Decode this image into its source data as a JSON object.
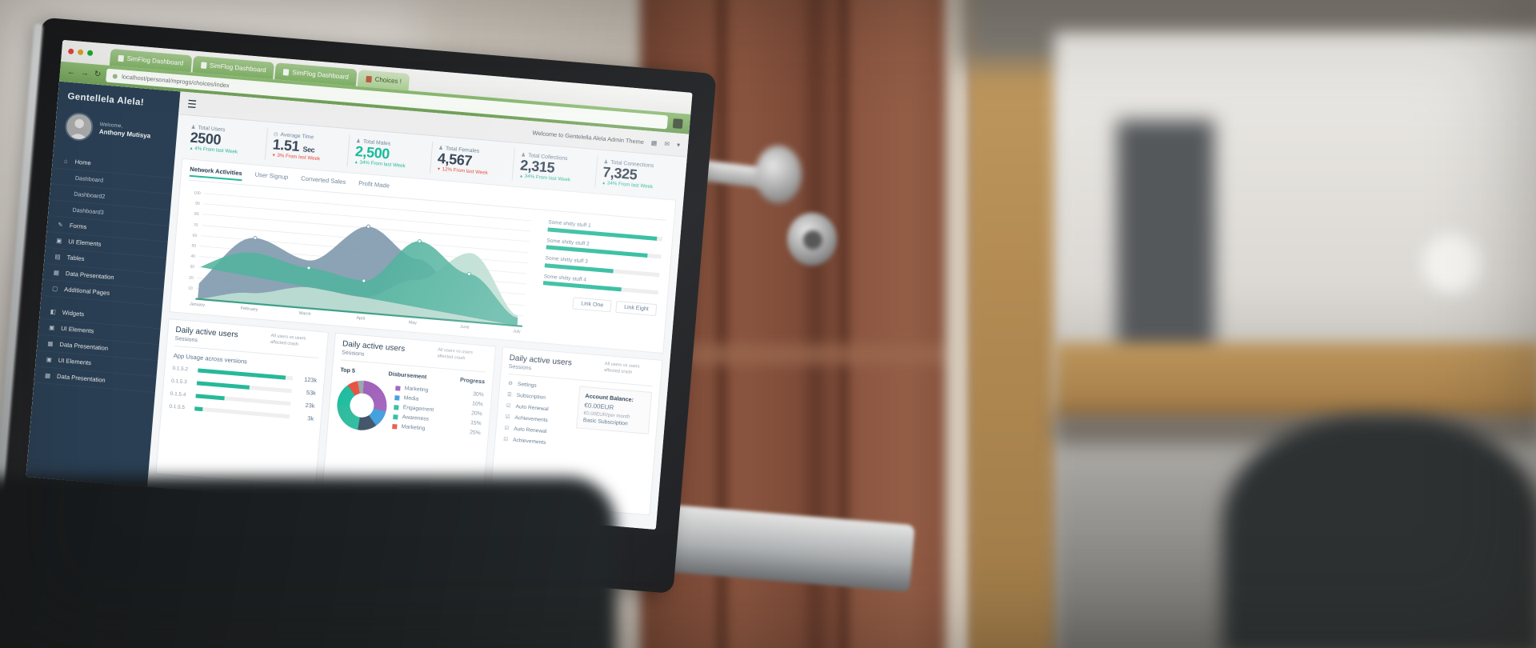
{
  "browser": {
    "tabs": [
      {
        "label": "SimFlog Dashboard"
      },
      {
        "label": "SimFlog Dashboard"
      },
      {
        "label": "SimFlog Dashboard"
      },
      {
        "label": "Choices !"
      }
    ],
    "url": "localhost/personal/mprogs/choices/index"
  },
  "sidebar": {
    "logo": "Gentellela Alela!",
    "welcome_label": "Welcome,",
    "user_name": "Anthony Mutisya",
    "items": [
      {
        "label": "Home"
      },
      {
        "label": "Dashboard"
      },
      {
        "label": "Dashboard2"
      },
      {
        "label": "Dashboard3"
      },
      {
        "label": "Forms"
      },
      {
        "label": "UI Elements"
      },
      {
        "label": "Tables"
      },
      {
        "label": "Data Presentation"
      },
      {
        "label": "Additional Pages"
      },
      {
        "label": "Widgets"
      },
      {
        "label": "UI Elements"
      },
      {
        "label": "Data Presentation"
      },
      {
        "label": "UI Elements"
      },
      {
        "label": "Data Presentation"
      }
    ]
  },
  "navbar": {
    "welcome_text": "Welcome to Gentelella Alela Admin Theme"
  },
  "stats": [
    {
      "label": "Total Users",
      "value": "2500",
      "unit": "",
      "delta": "4% From last Week",
      "trend": "up"
    },
    {
      "label": "Average Time",
      "value": "1.51",
      "unit": "Sec",
      "delta": "3% From last Week",
      "trend": "down"
    },
    {
      "label": "Total Males",
      "value": "2,500",
      "unit": "",
      "delta": "34% From last Week",
      "trend": "up"
    },
    {
      "label": "Total Females",
      "value": "4,567",
      "unit": "",
      "delta": "12% From last Week",
      "trend": "down"
    },
    {
      "label": "Total Collections",
      "value": "2,315",
      "unit": "",
      "delta": "34% From last Week",
      "trend": "up"
    },
    {
      "label": "Total Connections",
      "value": "7,325",
      "unit": "",
      "delta": "34% From last Week",
      "trend": "up"
    }
  ],
  "chart_panel": {
    "tabs": [
      "Network Activities",
      "User Signup",
      "Converted Sales",
      "Profit Made"
    ],
    "yticks": [
      "100",
      "90",
      "80",
      "70",
      "60",
      "50",
      "40",
      "30",
      "20",
      "10"
    ],
    "months": [
      "January",
      "February",
      "March",
      "April",
      "May",
      "June",
      "July"
    ]
  },
  "goals": {
    "items": [
      {
        "label": "Some shitty stuff 1",
        "percent": 95
      },
      {
        "label": "Some shitty stuff 2",
        "percent": 88
      },
      {
        "label": "Some shitty stuff 3",
        "percent": 60
      },
      {
        "label": "Some shitty stuff 4",
        "percent": 68
      }
    ],
    "buttons": [
      "Link One",
      "Link Eight"
    ]
  },
  "bottom": {
    "panel_title": "Daily active users",
    "panel_note": "All users vs users affected crash",
    "sessions_label": "Sessions",
    "app_usage": {
      "title": "App Usage across versions",
      "rows": [
        {
          "version": "0.1.5.2",
          "value": "123k",
          "percent": 92
        },
        {
          "version": "0.1.5.3",
          "value": "53k",
          "percent": 55
        },
        {
          "version": "0.1.5.4",
          "value": "23k",
          "percent": 30
        },
        {
          "version": "0.1.5.5",
          "value": "3k",
          "percent": 8
        }
      ]
    },
    "top5": {
      "headers": [
        "Top 5",
        "Disbursement",
        "Progress"
      ],
      "rows": [
        {
          "label": "Marketing",
          "value": "30%",
          "color": "#9b59b6"
        },
        {
          "label": "Media",
          "value": "10%",
          "color": "#3498db"
        },
        {
          "label": "Engagement",
          "value": "20%",
          "color": "#26b99a"
        },
        {
          "label": "Awareness",
          "value": "15%",
          "color": "#1abb9c"
        },
        {
          "label": "Marketing",
          "value": "25%",
          "color": "#e74c3c"
        }
      ]
    },
    "settings": {
      "items": [
        {
          "label": "Settings"
        },
        {
          "label": "Subscription"
        },
        {
          "label": "Auto Renewal"
        },
        {
          "label": "Achievements"
        },
        {
          "label": "Auto Renewal"
        },
        {
          "label": "Achievements"
        }
      ],
      "account": {
        "title": "Account Balance:",
        "amount": "€0.00EUR",
        "per_month": "€0.00EUR/per month",
        "plan": "Basic Subscription"
      }
    }
  },
  "chart_data": [
    {
      "type": "area",
      "title": "Network Activities",
      "x": [
        "January",
        "February",
        "March",
        "April",
        "May",
        "June",
        "July"
      ],
      "ylim": [
        0,
        100
      ],
      "yticks": [
        10,
        20,
        30,
        40,
        50,
        60,
        70,
        80,
        90,
        100
      ],
      "grid": true,
      "legend_position": "none",
      "series": [
        {
          "name": "series-slate",
          "color": "#7e99ad",
          "values": [
            15,
            62,
            45,
            82,
            55,
            20,
            5
          ]
        },
        {
          "name": "series-mint",
          "color": "#bcddd2",
          "values": [
            0,
            10,
            20,
            15,
            35,
            65,
            10
          ]
        },
        {
          "name": "series-teal",
          "color": "#52b39e",
          "values": [
            30,
            48,
            38,
            30,
            72,
            45,
            8
          ]
        }
      ]
    },
    {
      "type": "bar",
      "title": "App Usage across versions",
      "categories": [
        "0.1.5.2",
        "0.1.5.3",
        "0.1.5.4",
        "0.1.5.5"
      ],
      "values": [
        "123k",
        "53k",
        "23k",
        "3k"
      ]
    },
    {
      "type": "pie",
      "title": "Top 5 Disbursement Progress",
      "labels": [
        "Marketing",
        "Media",
        "Engagement",
        "Awareness",
        "Marketing"
      ],
      "values": [
        30,
        10,
        20,
        15,
        25
      ]
    }
  ],
  "colors": {
    "accent_green": "#26b99a",
    "teal_number": "#1abb9c",
    "sidebar_navy": "#2a3f54",
    "browser_green": "#7fb066",
    "door_brown": "#7d4b38",
    "shelf_wood": "#b28a52",
    "red_delta": "#e74c3c"
  }
}
